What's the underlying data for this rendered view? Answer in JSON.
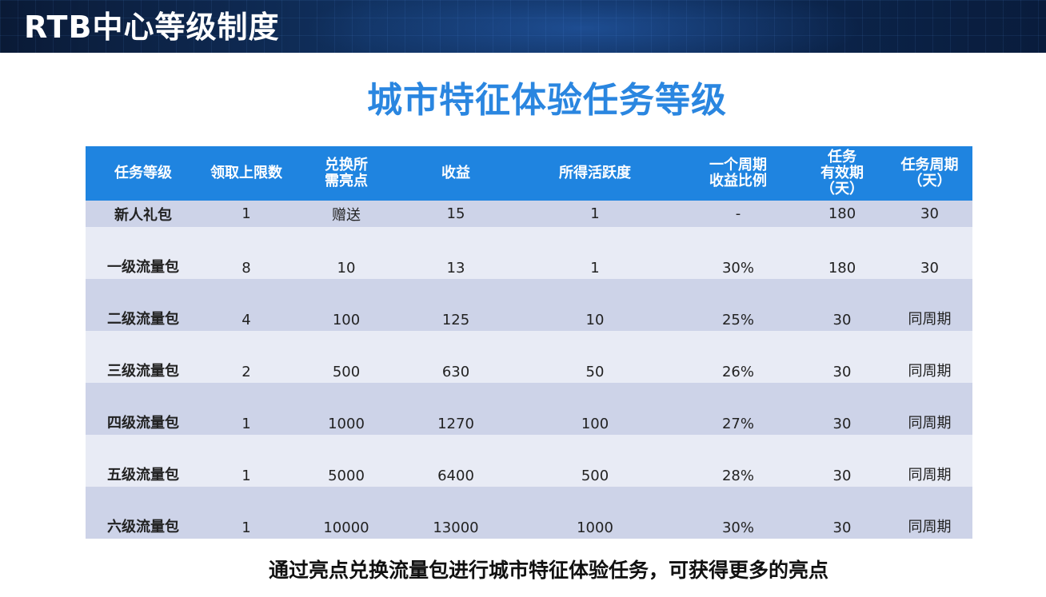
{
  "header": {
    "title": "RTB中心等级制度"
  },
  "main_title": "城市特征体验任务等级",
  "table": {
    "columns": [
      {
        "line1": "任务等级",
        "line2": "",
        "line3": ""
      },
      {
        "line1": "领取上限数",
        "line2": "",
        "line3": ""
      },
      {
        "line1": "兑换所",
        "line2": "需亮点",
        "line3": ""
      },
      {
        "line1": "收益",
        "line2": "",
        "line3": ""
      },
      {
        "line1": "所得活跃度",
        "line2": "",
        "line3": ""
      },
      {
        "line1": "一个周期",
        "line2": "收益比例",
        "line3": ""
      },
      {
        "line1": "任务",
        "line2": "有效期",
        "line3": "（天）"
      },
      {
        "line1": "任务周期",
        "line2": "（天）",
        "line3": ""
      }
    ],
    "rows": [
      [
        "新人礼包",
        "1",
        "赠送",
        "15",
        "1",
        "-",
        "180",
        "30"
      ],
      [
        "一级流量包",
        "8",
        "10",
        "13",
        "1",
        "30%",
        "180",
        "30"
      ],
      [
        "二级流量包",
        "4",
        "100",
        "125",
        "10",
        "25%",
        "30",
        "同周期"
      ],
      [
        "三级流量包",
        "2",
        "500",
        "630",
        "50",
        "26%",
        "30",
        "同周期"
      ],
      [
        "四级流量包",
        "1",
        "1000",
        "1270",
        "100",
        "27%",
        "30",
        "同周期"
      ],
      [
        "五级流量包",
        "1",
        "5000",
        "6400",
        "500",
        "28%",
        "30",
        "同周期"
      ],
      [
        "六级流量包",
        "1",
        "10000",
        "13000",
        "1000",
        "30%",
        "30",
        "同周期"
      ]
    ]
  },
  "footer": {
    "note": "通过亮点兑换流量包进行城市特征体验任务，可获得更多的亮点"
  }
}
